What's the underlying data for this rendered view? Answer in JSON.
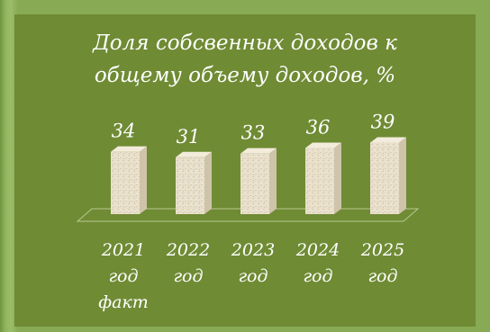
{
  "chart_data": {
    "type": "bar",
    "title_lines": [
      "Доля собсвенных доходов к",
      "общему объему доходов, %"
    ],
    "categories": [
      [
        "2021",
        "год",
        "факт"
      ],
      [
        "2022",
        "год"
      ],
      [
        "2023",
        "год"
      ],
      [
        "2024",
        "год"
      ],
      [
        "2025",
        "год"
      ]
    ],
    "values": [
      34,
      31,
      33,
      36,
      39
    ],
    "value_labels": [
      "34",
      "31",
      "33",
      "36",
      "39"
    ],
    "ylim": [
      0,
      45
    ],
    "grid": false,
    "legend": "none",
    "colors": {
      "background": "#88aa55",
      "panel": "#6f8b34",
      "bar_front": "#e9e0cc",
      "bar_side": "#cfc4aa",
      "bar_top": "#f3ecdc",
      "text": "#ffffff",
      "floor_line": "#b9c98e"
    }
  }
}
